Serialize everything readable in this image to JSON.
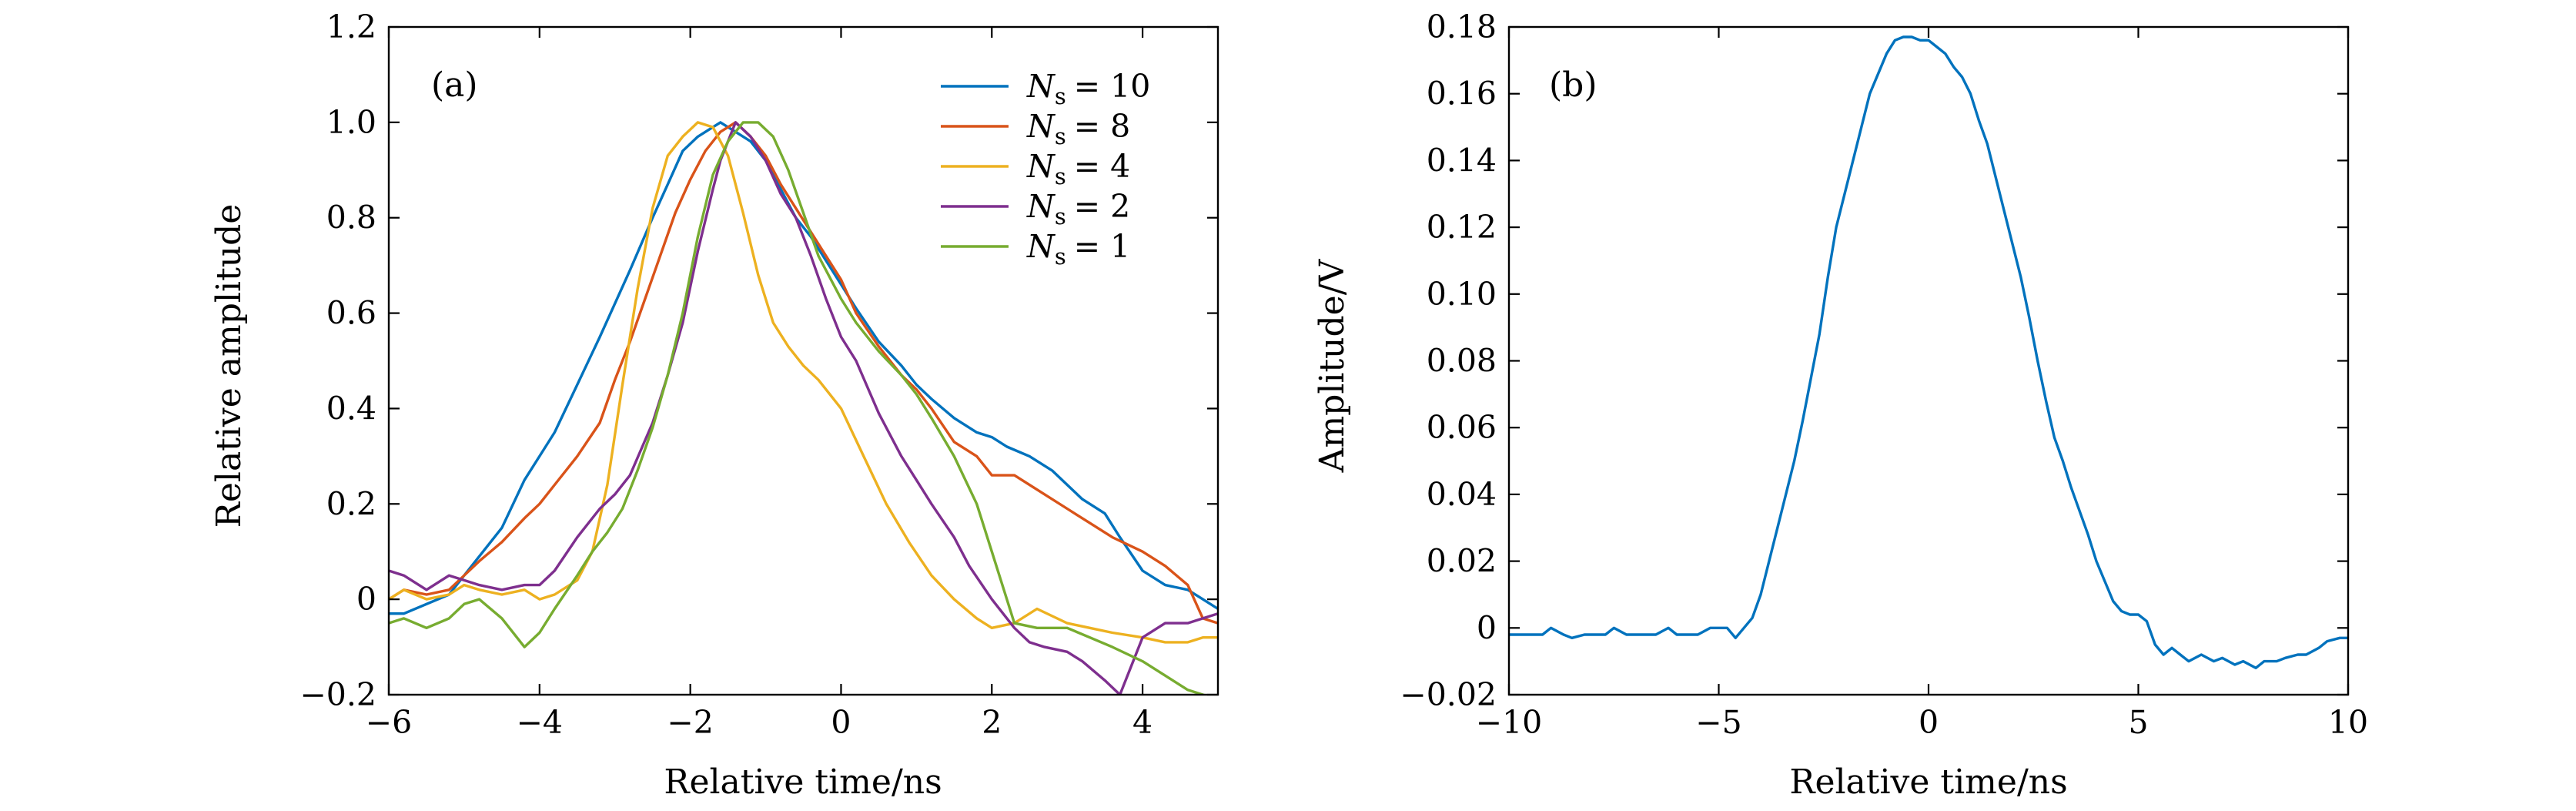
{
  "chart_data": [
    {
      "id": "a",
      "type": "line",
      "panel_label": "(a)",
      "xlabel": "Relative time/ns",
      "ylabel": "Relative amplitude",
      "xlim": [
        -6,
        5
      ],
      "ylim": [
        -0.2,
        1.2
      ],
      "xticks": [
        -6,
        -4,
        -2,
        0,
        2,
        4
      ],
      "yticks": [
        -0.2,
        0,
        0.2,
        0.4,
        0.6,
        0.8,
        1.0,
        1.2
      ],
      "xtick_labels": [
        "−6",
        "−4",
        "−2",
        "0",
        "2",
        "4"
      ],
      "ytick_labels": [
        "−0.2",
        "0",
        "0.2",
        "0.4",
        "0.6",
        "0.8",
        "1.0",
        "1.2"
      ],
      "legend_position": "top-right",
      "legend_symbol": "N",
      "legend_subscript": "s",
      "series": [
        {
          "name": "N_s = 10",
          "legend_value": "= 10",
          "color": "#0072BD",
          "x": [
            -6,
            -5.8,
            -5.5,
            -5.2,
            -5,
            -4.8,
            -4.5,
            -4.2,
            -4,
            -3.8,
            -3.5,
            -3.2,
            -3,
            -2.8,
            -2.5,
            -2.3,
            -2.1,
            -1.9,
            -1.7,
            -1.6,
            -1.4,
            -1.2,
            -1,
            -0.8,
            -0.6,
            -0.4,
            -0.2,
            0,
            0.2,
            0.5,
            0.8,
            1,
            1.2,
            1.5,
            1.8,
            2,
            2.2,
            2.5,
            2.8,
            3,
            3.2,
            3.5,
            3.7,
            4,
            4.3,
            4.6,
            4.8,
            5
          ],
          "y": [
            -0.03,
            -0.03,
            -0.01,
            0.01,
            0.05,
            0.09,
            0.15,
            0.25,
            0.3,
            0.35,
            0.45,
            0.55,
            0.62,
            0.69,
            0.8,
            0.87,
            0.94,
            0.97,
            0.99,
            1.0,
            0.98,
            0.96,
            0.92,
            0.86,
            0.8,
            0.76,
            0.71,
            0.66,
            0.61,
            0.54,
            0.49,
            0.45,
            0.42,
            0.38,
            0.35,
            0.34,
            0.32,
            0.3,
            0.27,
            0.24,
            0.21,
            0.18,
            0.13,
            0.06,
            0.03,
            0.02,
            0.0,
            -0.02
          ]
        },
        {
          "name": "N_s = 8",
          "legend_value": "= 8",
          "color": "#D95319",
          "x": [
            -6,
            -5.8,
            -5.5,
            -5.2,
            -5,
            -4.8,
            -4.5,
            -4.2,
            -4,
            -3.8,
            -3.5,
            -3.2,
            -3,
            -2.8,
            -2.6,
            -2.4,
            -2.2,
            -2,
            -1.8,
            -1.6,
            -1.4,
            -1.2,
            -1,
            -0.8,
            -0.6,
            -0.4,
            -0.2,
            0,
            0.2,
            0.5,
            0.8,
            1,
            1.2,
            1.5,
            1.8,
            2,
            2.3,
            2.6,
            3,
            3.3,
            3.6,
            4,
            4.3,
            4.6,
            4.8,
            5
          ],
          "y": [
            0.0,
            0.02,
            0.01,
            0.02,
            0.05,
            0.08,
            0.12,
            0.17,
            0.2,
            0.24,
            0.3,
            0.37,
            0.46,
            0.54,
            0.63,
            0.72,
            0.81,
            0.88,
            0.94,
            0.98,
            1.0,
            0.97,
            0.93,
            0.87,
            0.82,
            0.77,
            0.72,
            0.67,
            0.6,
            0.53,
            0.47,
            0.44,
            0.4,
            0.33,
            0.3,
            0.26,
            0.26,
            0.23,
            0.19,
            0.16,
            0.13,
            0.1,
            0.07,
            0.03,
            -0.04,
            -0.05
          ]
        },
        {
          "name": "N_s = 4",
          "legend_value": "= 4",
          "color": "#EDB120",
          "x": [
            -6,
            -5.8,
            -5.5,
            -5.2,
            -5,
            -4.8,
            -4.5,
            -4.2,
            -4,
            -3.8,
            -3.5,
            -3.3,
            -3.1,
            -2.9,
            -2.7,
            -2.5,
            -2.3,
            -2.1,
            -1.9,
            -1.7,
            -1.5,
            -1.3,
            -1.1,
            -0.9,
            -0.7,
            -0.5,
            -0.3,
            0,
            0.3,
            0.6,
            0.9,
            1.2,
            1.5,
            1.8,
            2,
            2.3,
            2.6,
            3,
            3.3,
            3.6,
            4,
            4.3,
            4.6,
            4.8,
            5
          ],
          "y": [
            0.0,
            0.02,
            0.0,
            0.01,
            0.03,
            0.02,
            0.01,
            0.02,
            0.0,
            0.01,
            0.04,
            0.1,
            0.24,
            0.45,
            0.65,
            0.82,
            0.93,
            0.97,
            1.0,
            0.99,
            0.93,
            0.81,
            0.68,
            0.58,
            0.53,
            0.49,
            0.46,
            0.4,
            0.3,
            0.2,
            0.12,
            0.05,
            0.0,
            -0.04,
            -0.06,
            -0.05,
            -0.02,
            -0.05,
            -0.06,
            -0.07,
            -0.08,
            -0.09,
            -0.09,
            -0.08,
            -0.08
          ]
        },
        {
          "name": "N_s = 2",
          "legend_value": "= 2",
          "color": "#7E2F8E",
          "x": [
            -6,
            -5.8,
            -5.5,
            -5.2,
            -5,
            -4.8,
            -4.5,
            -4.2,
            -4,
            -3.8,
            -3.5,
            -3.2,
            -3,
            -2.8,
            -2.5,
            -2.3,
            -2.1,
            -1.9,
            -1.7,
            -1.6,
            -1.4,
            -1.2,
            -1,
            -0.8,
            -0.6,
            -0.4,
            -0.2,
            0,
            0.2,
            0.5,
            0.8,
            1,
            1.2,
            1.5,
            1.7,
            2,
            2.3,
            2.5,
            2.7,
            3,
            3.2,
            3.5,
            3.7,
            4,
            4.3,
            4.6,
            4.8,
            5
          ],
          "y": [
            0.06,
            0.05,
            0.02,
            0.05,
            0.04,
            0.03,
            0.02,
            0.03,
            0.03,
            0.06,
            0.13,
            0.19,
            0.22,
            0.26,
            0.37,
            0.47,
            0.58,
            0.73,
            0.86,
            0.92,
            1.0,
            0.97,
            0.92,
            0.85,
            0.8,
            0.72,
            0.63,
            0.55,
            0.5,
            0.39,
            0.3,
            0.25,
            0.2,
            0.13,
            0.07,
            0.0,
            -0.06,
            -0.09,
            -0.1,
            -0.11,
            -0.13,
            -0.17,
            -0.2,
            -0.08,
            -0.05,
            -0.05,
            -0.04,
            -0.03
          ]
        },
        {
          "name": "N_s = 1",
          "legend_value": "= 1",
          "color": "#77AC30",
          "x": [
            -6,
            -5.8,
            -5.5,
            -5.2,
            -5,
            -4.8,
            -4.5,
            -4.2,
            -4,
            -3.8,
            -3.5,
            -3.3,
            -3.1,
            -2.9,
            -2.7,
            -2.5,
            -2.3,
            -2.1,
            -1.9,
            -1.7,
            -1.5,
            -1.3,
            -1.1,
            -0.9,
            -0.7,
            -0.5,
            -0.3,
            0,
            0.2,
            0.5,
            0.8,
            1,
            1.2,
            1.5,
            1.8,
            2,
            2.3,
            2.6,
            3,
            3.3,
            3.6,
            4,
            4.3,
            4.6,
            4.8,
            5
          ],
          "y": [
            -0.05,
            -0.04,
            -0.06,
            -0.04,
            -0.01,
            0.0,
            -0.04,
            -0.1,
            -0.07,
            -0.02,
            0.05,
            0.1,
            0.14,
            0.19,
            0.27,
            0.36,
            0.47,
            0.6,
            0.76,
            0.89,
            0.96,
            1.0,
            1.0,
            0.97,
            0.9,
            0.81,
            0.72,
            0.63,
            0.58,
            0.52,
            0.47,
            0.43,
            0.38,
            0.3,
            0.2,
            0.1,
            -0.05,
            -0.06,
            -0.06,
            -0.08,
            -0.1,
            -0.13,
            -0.16,
            -0.19,
            -0.2,
            -0.21
          ]
        }
      ]
    },
    {
      "id": "b",
      "type": "line",
      "panel_label": "(b)",
      "xlabel": "Relative time/ns",
      "ylabel": "Amplitude/V",
      "xlim": [
        -10,
        10
      ],
      "ylim": [
        -0.02,
        0.18
      ],
      "xticks": [
        -10,
        -5,
        0,
        5,
        10
      ],
      "yticks": [
        -0.02,
        0,
        0.02,
        0.04,
        0.06,
        0.08,
        0.1,
        0.12,
        0.14,
        0.16,
        0.18
      ],
      "xtick_labels": [
        "−10",
        "−5",
        "0",
        "5",
        "10"
      ],
      "ytick_labels": [
        "−0.02",
        "0",
        "0.02",
        "0.04",
        "0.06",
        "0.08",
        "0.10",
        "0.12",
        "0.14",
        "0.16",
        "0.18"
      ],
      "series": [
        {
          "name": "Amplitude",
          "color": "#0072BD",
          "x": [
            -10,
            -9.5,
            -9.2,
            -9,
            -8.7,
            -8.5,
            -8.2,
            -8,
            -7.7,
            -7.5,
            -7.2,
            -7,
            -6.7,
            -6.5,
            -6.2,
            -6,
            -5.7,
            -5.5,
            -5.2,
            -5,
            -4.8,
            -4.6,
            -4.4,
            -4.2,
            -4,
            -3.8,
            -3.6,
            -3.4,
            -3.2,
            -3,
            -2.8,
            -2.6,
            -2.4,
            -2.2,
            -2,
            -1.8,
            -1.6,
            -1.4,
            -1.2,
            -1,
            -0.8,
            -0.6,
            -0.4,
            -0.2,
            0,
            0.2,
            0.4,
            0.6,
            0.8,
            1,
            1.2,
            1.4,
            1.6,
            1.8,
            2,
            2.2,
            2.4,
            2.6,
            2.8,
            3,
            3.2,
            3.4,
            3.6,
            3.8,
            4,
            4.2,
            4.4,
            4.6,
            4.8,
            5,
            5.2,
            5.4,
            5.6,
            5.8,
            6,
            6.2,
            6.5,
            6.8,
            7,
            7.3,
            7.5,
            7.8,
            8,
            8.3,
            8.5,
            8.8,
            9,
            9.3,
            9.5,
            9.8,
            10
          ],
          "y": [
            -0.002,
            -0.002,
            -0.002,
            0.0,
            -0.002,
            -0.003,
            -0.002,
            -0.002,
            -0.002,
            0.0,
            -0.002,
            -0.002,
            -0.002,
            -0.002,
            0.0,
            -0.002,
            -0.002,
            -0.002,
            0.0,
            0.0,
            0.0,
            -0.003,
            0.0,
            0.003,
            0.01,
            0.02,
            0.03,
            0.04,
            0.05,
            0.062,
            0.075,
            0.088,
            0.105,
            0.12,
            0.13,
            0.14,
            0.15,
            0.16,
            0.166,
            0.172,
            0.176,
            0.177,
            0.177,
            0.176,
            0.176,
            0.174,
            0.172,
            0.168,
            0.165,
            0.16,
            0.152,
            0.145,
            0.135,
            0.125,
            0.115,
            0.105,
            0.093,
            0.08,
            0.068,
            0.057,
            0.05,
            0.042,
            0.035,
            0.028,
            0.02,
            0.014,
            0.008,
            0.005,
            0.004,
            0.004,
            0.002,
            -0.005,
            -0.008,
            -0.006,
            -0.008,
            -0.01,
            -0.008,
            -0.01,
            -0.009,
            -0.011,
            -0.01,
            -0.012,
            -0.01,
            -0.01,
            -0.009,
            -0.008,
            -0.008,
            -0.006,
            -0.004,
            -0.003,
            -0.003
          ]
        }
      ]
    }
  ]
}
